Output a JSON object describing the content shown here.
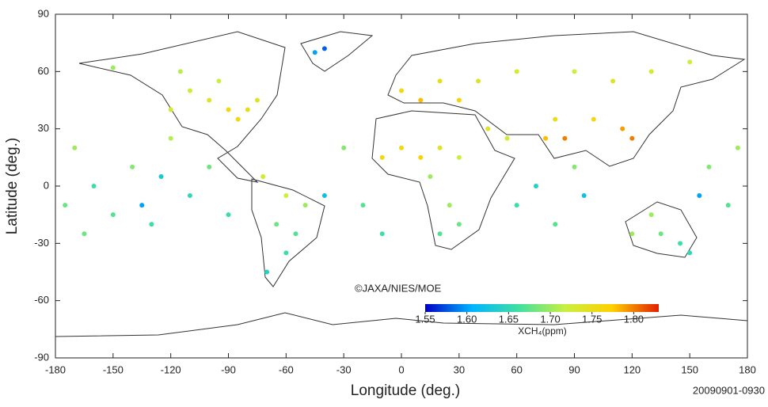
{
  "chart_data": {
    "type": "scatter",
    "xlabel": "Longitude (deg.)",
    "ylabel": "Latitude (deg.)",
    "credit": "©JAXA/NIES/MOE",
    "date": "20090901-0930",
    "colorbar_label": "XCH₄(ppm)",
    "xlim": [
      -180,
      180
    ],
    "ylim": [
      -90,
      90
    ],
    "xticks": [
      -180,
      -150,
      -120,
      -90,
      -60,
      -30,
      0,
      30,
      60,
      90,
      120,
      150,
      180
    ],
    "yticks": [
      -90,
      -60,
      -30,
      0,
      30,
      60,
      90
    ],
    "clim": [
      1.55,
      1.83
    ],
    "cticks": [
      {
        "value": 1.55,
        "label": "1.55"
      },
      {
        "value": 1.6,
        "label": "1.60"
      },
      {
        "value": 1.65,
        "label": "1.65"
      },
      {
        "value": 1.7,
        "label": "1.70"
      },
      {
        "value": 1.75,
        "label": "1.75"
      },
      {
        "value": 1.8,
        "label": "1.80"
      }
    ],
    "colormap": [
      "#0000c8",
      "#00b4ff",
      "#40e0a0",
      "#c8f040",
      "#ffd000",
      "#e02000"
    ],
    "x": [
      -100,
      -90,
      -80,
      -110,
      -120,
      -95,
      -75,
      -150,
      -115,
      -85,
      -45,
      -40,
      -60,
      -50,
      -65,
      -60,
      -70,
      -55,
      -72,
      0,
      20,
      40,
      60,
      90,
      110,
      130,
      150,
      30,
      10,
      45,
      55,
      75,
      85,
      100,
      115,
      120,
      80,
      0,
      10,
      20,
      30,
      15,
      25,
      30,
      20,
      -10,
      120,
      135,
      145,
      130,
      150,
      -175,
      -170,
      -160,
      -150,
      -140,
      -130,
      -120,
      -110,
      -100,
      -90,
      -30,
      -20,
      -10,
      -40,
      60,
      70,
      80,
      90,
      95,
      160,
      170,
      175,
      155,
      -165,
      -135,
      -125
    ],
    "y": [
      45,
      40,
      40,
      50,
      40,
      55,
      45,
      62,
      60,
      35,
      70,
      72,
      -5,
      -10,
      -20,
      -35,
      -45,
      -25,
      5,
      50,
      55,
      55,
      60,
      60,
      55,
      60,
      65,
      45,
      45,
      30,
      25,
      25,
      25,
      35,
      30,
      25,
      35,
      20,
      15,
      20,
      15,
      5,
      -10,
      -20,
      -25,
      15,
      -25,
      -25,
      -30,
      -15,
      -35,
      -10,
      20,
      0,
      -15,
      10,
      -20,
      25,
      -5,
      10,
      -15,
      20,
      -10,
      -25,
      -5,
      -10,
      0,
      -20,
      10,
      -5,
      10,
      -10,
      20,
      -5,
      -25,
      -10,
      5
    ],
    "values": [
      1.74,
      1.76,
      1.75,
      1.73,
      1.73,
      1.72,
      1.74,
      1.7,
      1.71,
      1.76,
      1.6,
      1.58,
      1.72,
      1.7,
      1.68,
      1.66,
      1.64,
      1.67,
      1.73,
      1.76,
      1.75,
      1.74,
      1.73,
      1.72,
      1.74,
      1.73,
      1.72,
      1.77,
      1.78,
      1.74,
      1.73,
      1.78,
      1.8,
      1.76,
      1.79,
      1.8,
      1.75,
      1.76,
      1.77,
      1.74,
      1.72,
      1.7,
      1.7,
      1.68,
      1.67,
      1.76,
      1.7,
      1.68,
      1.66,
      1.7,
      1.65,
      1.68,
      1.7,
      1.66,
      1.67,
      1.69,
      1.66,
      1.71,
      1.65,
      1.68,
      1.66,
      1.69,
      1.67,
      1.66,
      1.62,
      1.66,
      1.64,
      1.67,
      1.69,
      1.62,
      1.69,
      1.67,
      1.7,
      1.6,
      1.68,
      1.6,
      1.63
    ]
  }
}
